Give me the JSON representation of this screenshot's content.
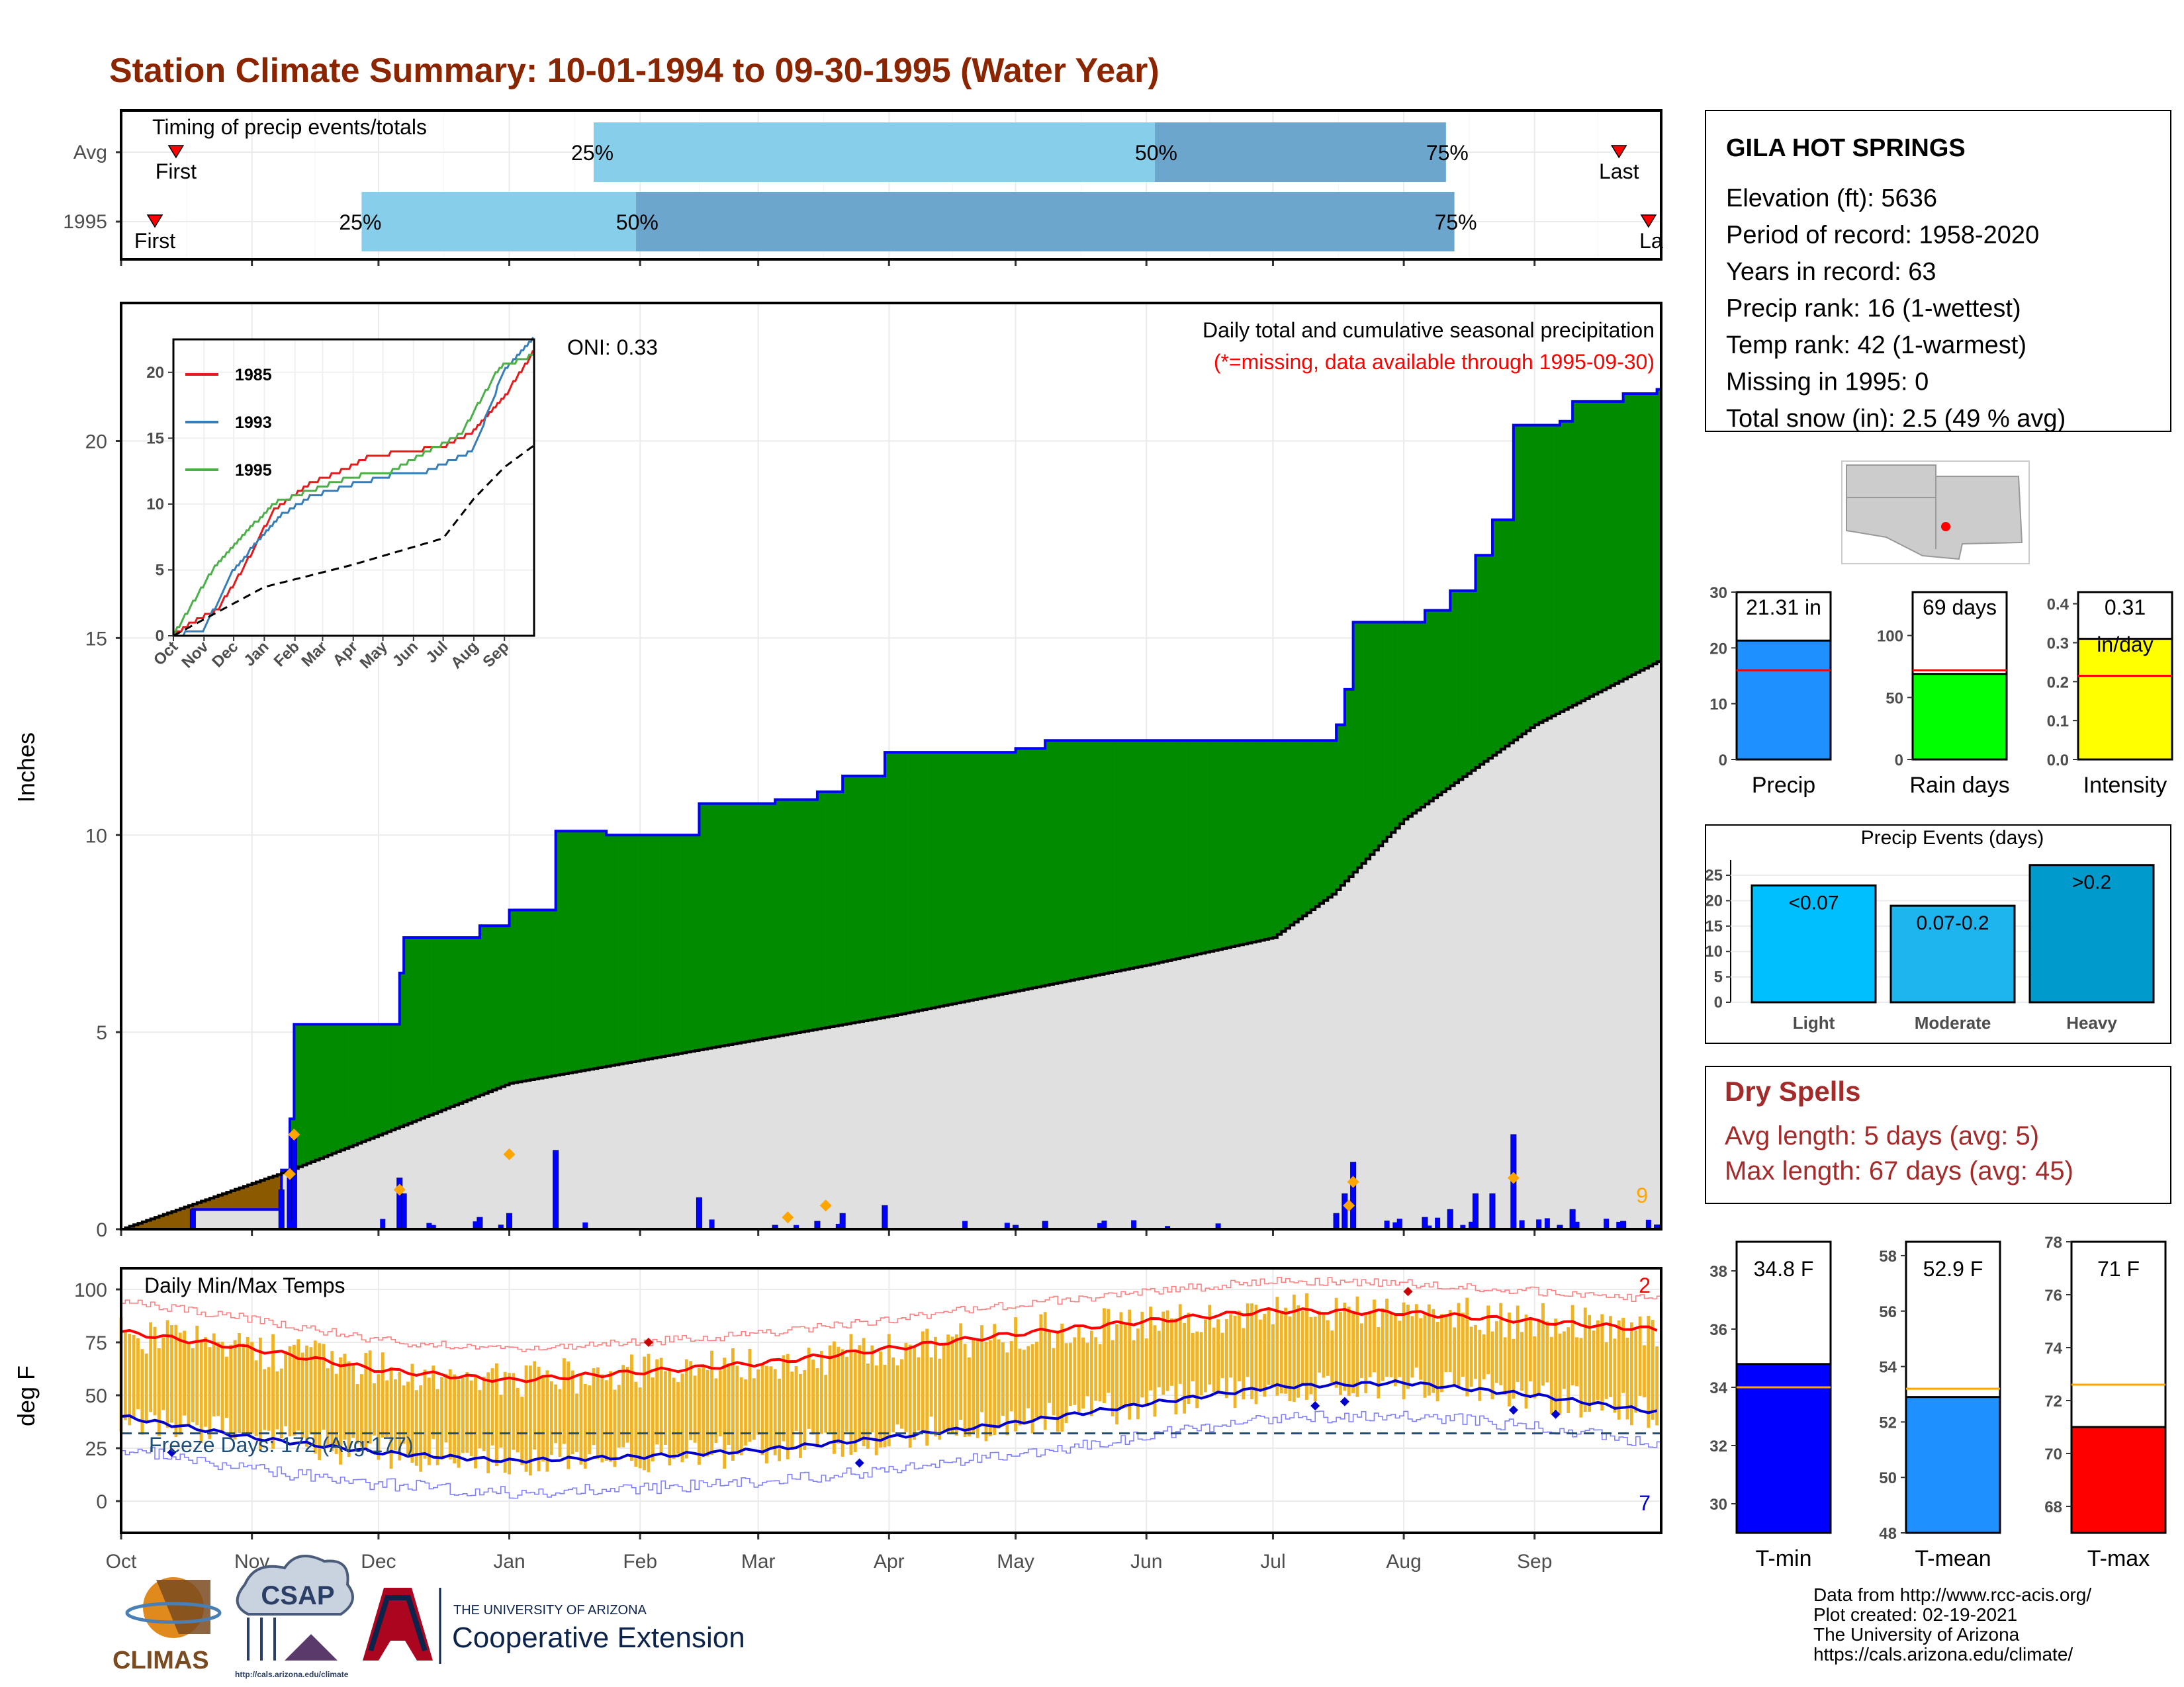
{
  "title": "Station Climate Summary: 10-01-1994 to 09-30-1995 (Water Year)",
  "timing": {
    "label": "Timing of precip events/totals",
    "rows": [
      {
        "name": "Avg",
        "first_label": "First",
        "last_label": "Last",
        "p25_label": "25%",
        "p50_label": "50%",
        "p75_label": "75%",
        "first": "1994-10-14",
        "p25": "1995-01-21",
        "p50": "1995-06-03",
        "p75": "1995-08-11",
        "last": "1995-09-21"
      },
      {
        "name": "1995",
        "first_label": "First",
        "last_label": "La",
        "p25_label": "25%",
        "p50_label": "50%",
        "p75_label": "75%",
        "first": "1994-10-09",
        "p25": "1994-11-27",
        "p50": "1995-01-31",
        "p75": "1995-08-13",
        "last": "1995-09-28"
      }
    ],
    "colors": {
      "light": "#87ceeb",
      "dark": "#6ca6cd",
      "marker": "#ff0000"
    }
  },
  "main_panel": {
    "ylabel": "Inches",
    "yticks": [
      "0",
      "5",
      "10",
      "15",
      "20"
    ],
    "oni": "ONI: 0.33",
    "desc1": "Daily total and cumulative seasonal precipitation",
    "desc2": "(*=missing, data available through 1995-09-30)",
    "count_label": "9",
    "colors": {
      "above": "#008b00",
      "below": "#8b5a00",
      "avg_fill": "#e0e0e0",
      "line": "#0000ff",
      "avg_line": "#000000",
      "daily": "#0000ff",
      "marker": "#ffa500",
      "desc2": "#ff0000"
    }
  },
  "inset": {
    "yticks": [
      "0",
      "5",
      "10",
      "15",
      "20"
    ],
    "months": [
      "Oct",
      "Nov",
      "Dec",
      "Jan",
      "Feb",
      "Mar",
      "Apr",
      "May",
      "Jun",
      "Jul",
      "Aug",
      "Sep"
    ],
    "legend": [
      {
        "name": "1985",
        "color": "#e41a1c"
      },
      {
        "name": "1993",
        "color": "#377eb8"
      },
      {
        "name": "1995",
        "color": "#4daf4a"
      }
    ]
  },
  "temp_panel": {
    "title": "Daily Min/Max Temps",
    "ylabel": "deg F",
    "yticks": [
      "0",
      "25",
      "50",
      "75",
      "100"
    ],
    "freeze": "Freeze Days: 172 (Avg:177)",
    "max_count": "2",
    "min_count": "7",
    "colors": {
      "bars": "#f0b323",
      "max_avg": "#ff0000",
      "min_avg": "#0000cd",
      "freeze_line": "#1f4e79"
    }
  },
  "months": [
    "Oct",
    "Nov",
    "Dec",
    "Jan",
    "Feb",
    "Mar",
    "Apr",
    "May",
    "Jun",
    "Jul",
    "Aug",
    "Sep"
  ],
  "station": {
    "name": "GILA HOT SPRINGS",
    "lines": [
      "Elevation (ft): 5636",
      "Period of record: 1958-2020",
      "Years in record: 63",
      "Precip rank: 16 (1-wettest)",
      "Temp rank: 42 (1-warmest)",
      "Missing in 1995: 0",
      "Total snow (in): 2.5 (49 % avg)"
    ]
  },
  "mini_bars": [
    {
      "label": "Precip",
      "value_label": "21.31 in",
      "value": 21.31,
      "avg": 16,
      "max": 30,
      "ticks": [
        "0",
        "10",
        "20",
        "30"
      ],
      "color": "#1e90ff"
    },
    {
      "label": "Rain days",
      "value_label": "69 days",
      "value": 69,
      "avg": 72,
      "max": 135,
      "ticks": [
        "0",
        "50",
        "100"
      ],
      "color": "#00ff00"
    },
    {
      "label": "Intensity",
      "value_label": "0.31",
      "unit_label": "in/day",
      "value": 0.31,
      "avg": 0.215,
      "max": 0.43,
      "ticks": [
        "0.0",
        "0.1",
        "0.2",
        "0.3",
        "0.4"
      ],
      "color": "#ffff00"
    }
  ],
  "events": {
    "title": "Precip Events (days)",
    "ticks": [
      "0",
      "5",
      "10",
      "15",
      "20",
      "25"
    ],
    "bars": [
      {
        "category": "Light",
        "label": "<0.07",
        "value": 23,
        "color": "#00bfff"
      },
      {
        "category": "Moderate",
        "label": "0.07-0.2",
        "value": 19,
        "color": "#1eb4ee"
      },
      {
        "category": "Heavy",
        "label": ">0.2",
        "value": 27,
        "color": "#009acd"
      }
    ]
  },
  "dry_spells": {
    "title": "Dry Spells",
    "avg": "Avg length: 5 days (avg: 5)",
    "max": "Max length: 67 days (avg: 45)",
    "color": "#a52a2a"
  },
  "temp_bars": [
    {
      "label": "T-min",
      "value_label": "34.8 F",
      "value": 34.8,
      "avg": 34.0,
      "min": 29,
      "max": 39,
      "ticks": [
        "30",
        "32",
        "34",
        "36",
        "38"
      ],
      "color": "#0000ff"
    },
    {
      "label": "T-mean",
      "value_label": "52.9 F",
      "value": 52.9,
      "avg": 53.2,
      "min": 48,
      "max": 58.5,
      "ticks": [
        "48",
        "50",
        "52",
        "54",
        "56",
        "58"
      ],
      "color": "#1e90ff"
    },
    {
      "label": "T-max",
      "value_label": "71 F",
      "value": 71,
      "avg": 72.6,
      "min": 67,
      "max": 78,
      "ticks": [
        "68",
        "70",
        "72",
        "74",
        "76",
        "78"
      ],
      "color": "#ff0000"
    }
  ],
  "footer": {
    "lines": [
      "Data from http://www.rcc-acis.org/",
      "Plot created: 02-19-2021",
      "The University of Arizona",
      "https://cals.arizona.edu/climate/"
    ]
  },
  "logos": {
    "climas": "CLIMAS",
    "csap": "CSAP",
    "csap_url": "http://cals.arizona.edu/climate",
    "ua_small": "THE UNIVERSITY OF ARIZONA",
    "coop": "Cooperative Extension"
  },
  "chart_data": [
    {
      "type": "area",
      "title": "Daily total and cumulative seasonal precipitation",
      "ylabel": "Inches",
      "ylim": [
        0,
        23.5
      ],
      "x_range": [
        "1994-10-01",
        "1995-09-30"
      ],
      "series": [
        {
          "name": "1995",
          "points": [
            [
              "1994-10-01",
              0
            ],
            [
              "1994-10-18",
              0.5
            ],
            [
              "1994-11-07",
              0.5
            ],
            [
              "1994-11-08",
              1.5
            ],
            [
              "1994-11-10",
              2.8
            ],
            [
              "1994-11-11",
              5.2
            ],
            [
              "1994-12-05",
              5.2
            ],
            [
              "1994-12-06",
              6.5
            ],
            [
              "1994-12-07",
              7.4
            ],
            [
              "1994-12-20",
              7.4
            ],
            [
              "1994-12-25",
              7.7
            ],
            [
              "1995-01-01",
              8.1
            ],
            [
              "1995-01-11",
              8.1
            ],
            [
              "1995-01-12",
              10.1
            ],
            [
              "1995-01-24",
              10.0
            ],
            [
              "1995-02-10",
              10.0
            ],
            [
              "1995-02-15",
              10.8
            ],
            [
              "1995-03-05",
              10.9
            ],
            [
              "1995-03-15",
              11.1
            ],
            [
              "1995-03-21",
              11.5
            ],
            [
              "1995-03-31",
              12.1
            ],
            [
              "1995-05-01",
              12.2
            ],
            [
              "1995-05-08",
              12.4
            ],
            [
              "1995-07-14",
              12.4
            ],
            [
              "1995-07-16",
              12.8
            ],
            [
              "1995-07-18",
              13.7
            ],
            [
              "1995-07-20",
              15.4
            ],
            [
              "1995-08-04",
              15.4
            ],
            [
              "1995-08-06",
              15.7
            ],
            [
              "1995-08-12",
              16.2
            ],
            [
              "1995-08-18",
              17.1
            ],
            [
              "1995-08-22",
              18.0
            ],
            [
              "1995-08-27",
              20.4
            ],
            [
              "1995-09-07",
              20.5
            ],
            [
              "1995-09-10",
              21.0
            ],
            [
              "1995-09-22",
              21.2
            ],
            [
              "1995-09-30",
              21.31
            ]
          ]
        },
        {
          "name": "Average",
          "points": [
            [
              "1994-10-01",
              0
            ],
            [
              "1994-11-10",
              1.5
            ],
            [
              "1995-01-01",
              3.7
            ],
            [
              "1995-04-01",
              5.4
            ],
            [
              "1995-06-01",
              6.7
            ],
            [
              "1995-07-01",
              7.4
            ],
            [
              "1995-07-15",
              8.5
            ],
            [
              "1995-08-01",
              10.4
            ],
            [
              "1995-09-01",
              12.8
            ],
            [
              "1995-09-30",
              14.4
            ]
          ]
        }
      ],
      "daily_events": [
        [
          "1994-11-10",
          1.4
        ],
        [
          "1994-11-11",
          2.4
        ],
        [
          "1994-12-06",
          1.0
        ],
        [
          "1995-01-01",
          1.9
        ],
        [
          "1995-03-08",
          0.3
        ],
        [
          "1995-03-17",
          0.6
        ],
        [
          "1995-07-20",
          1.2
        ],
        [
          "1995-07-19",
          0.6
        ],
        [
          "1995-08-27",
          1.3
        ]
      ]
    },
    {
      "type": "line",
      "title": "",
      "ylim": [
        0,
        22.5
      ],
      "x_range": [
        "1994-10-01",
        "1995-09-30"
      ],
      "series": [
        {
          "name": "1985",
          "points": [
            [
              "1994-10-01",
              0
            ],
            [
              "1994-10-20",
              1.0
            ],
            [
              "1994-11-15",
              2.0
            ],
            [
              "1994-12-10",
              5.0
            ],
            [
              "1995-01-10",
              9.5
            ],
            [
              "1995-02-15",
              11.5
            ],
            [
              "1995-03-20",
              12.5
            ],
            [
              "1995-04-15",
              13.5
            ],
            [
              "1995-05-20",
              14.0
            ],
            [
              "1995-06-30",
              14.3
            ],
            [
              "1995-07-31",
              15.5
            ],
            [
              "1995-08-31",
              18.0
            ],
            [
              "1995-09-30",
              21.5
            ]
          ]
        },
        {
          "name": "1993",
          "points": [
            [
              "1994-10-01",
              0
            ],
            [
              "1994-11-01",
              0.5
            ],
            [
              "1994-12-01",
              5.0
            ],
            [
              "1995-01-15",
              9.0
            ],
            [
              "1995-02-15",
              10.5
            ],
            [
              "1995-04-01",
              11.5
            ],
            [
              "1995-05-15",
              12.3
            ],
            [
              "1995-06-15",
              12.5
            ],
            [
              "1995-07-31",
              14.0
            ],
            [
              "1995-08-31",
              20.0
            ],
            [
              "1995-09-30",
              22.5
            ]
          ]
        },
        {
          "name": "1995",
          "points": [
            [
              "1994-10-01",
              0
            ],
            [
              "1994-11-11",
              5.2
            ],
            [
              "1994-12-07",
              7.4
            ],
            [
              "1995-01-12",
              10.1
            ],
            [
              "1995-03-31",
              12.1
            ],
            [
              "1995-05-08",
              12.4
            ],
            [
              "1995-07-20",
              15.4
            ],
            [
              "1995-08-27",
              20.4
            ],
            [
              "1995-09-30",
              21.31
            ]
          ]
        },
        {
          "name": "Average",
          "points": [
            [
              "1994-10-01",
              0
            ],
            [
              "1995-01-01",
              3.7
            ],
            [
              "1995-04-01",
              5.4
            ],
            [
              "1995-07-01",
              7.4
            ],
            [
              "1995-08-01",
              10.4
            ],
            [
              "1995-09-01",
              12.8
            ],
            [
              "1995-09-30",
              14.4
            ]
          ]
        }
      ]
    },
    {
      "type": "line",
      "title": "Daily Min/Max Temps",
      "ylabel": "deg F",
      "ylim": [
        -15,
        110
      ],
      "x_range": [
        "1994-10-01",
        "1995-09-30"
      ],
      "series": [
        {
          "name": "Max avg",
          "points": [
            [
              "1994-10-01",
              80
            ],
            [
              "1994-11-01",
              72
            ],
            [
              "1994-12-01",
              62
            ],
            [
              "1995-01-01",
              57
            ],
            [
              "1995-02-01",
              61
            ],
            [
              "1995-03-01",
              65
            ],
            [
              "1995-04-01",
              72
            ],
            [
              "1995-05-01",
              79
            ],
            [
              "1995-06-01",
              85
            ],
            [
              "1995-07-01",
              90
            ],
            [
              "1995-08-01",
              89
            ],
            [
              "1995-09-01",
              85
            ],
            [
              "1995-09-30",
              81
            ]
          ]
        },
        {
          "name": "Min avg",
          "points": [
            [
              "1994-10-01",
              40
            ],
            [
              "1994-11-01",
              30
            ],
            [
              "1994-12-01",
              23
            ],
            [
              "1995-01-01",
              19
            ],
            [
              "1995-02-01",
              21
            ],
            [
              "1995-03-01",
              24
            ],
            [
              "1995-04-01",
              30
            ],
            [
              "1995-05-01",
              37
            ],
            [
              "1995-06-01",
              46
            ],
            [
              "1995-07-01",
              54
            ],
            [
              "1995-08-01",
              56
            ],
            [
              "1995-09-01",
              50
            ],
            [
              "1995-09-30",
              42
            ]
          ]
        },
        {
          "name": "Freeze",
          "points": [
            [
              "1994-10-01",
              32
            ],
            [
              "1995-09-30",
              32
            ]
          ]
        }
      ]
    },
    {
      "type": "bar",
      "title": "Precip Events (days)",
      "categories": [
        "Light",
        "Moderate",
        "Heavy"
      ],
      "values": [
        23,
        19,
        27
      ],
      "ylim": [
        0,
        28
      ]
    }
  ]
}
